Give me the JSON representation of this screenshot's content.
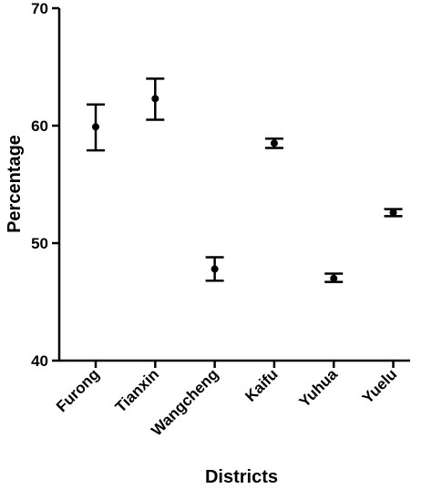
{
  "chart_data": {
    "type": "scatter",
    "subtype": "point-with-error-bars",
    "title": "",
    "xlabel": "Districts",
    "ylabel": "Percentage",
    "ylim": [
      40,
      70
    ],
    "yticks": [
      40,
      50,
      60,
      70
    ],
    "grid": false,
    "categories": [
      "Furong",
      "Tianxin",
      "Wangcheng",
      "Kaifu",
      "Yuhua",
      "Yuelu"
    ],
    "values": [
      59.9,
      62.3,
      47.8,
      58.5,
      47.0,
      52.6
    ],
    "error_low": [
      57.9,
      60.5,
      46.8,
      58.1,
      46.7,
      52.3
    ],
    "error_high": [
      61.8,
      64.0,
      48.8,
      58.9,
      47.4,
      52.9
    ],
    "ytick_labels": [
      "40",
      "50",
      "60",
      "70"
    ],
    "color": "#000000"
  }
}
